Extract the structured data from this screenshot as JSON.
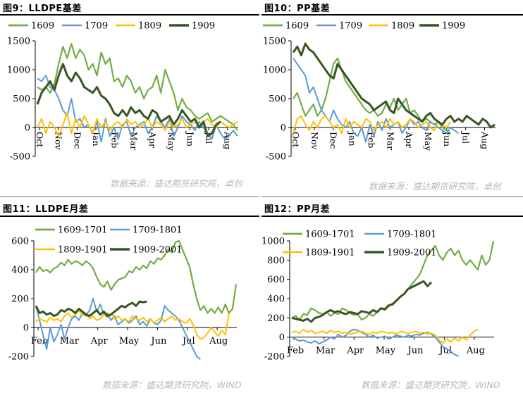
{
  "charts": [
    {
      "caption": "图9：LLDPE基差",
      "source": "数据来源：盛达期货研究院，卓创",
      "chart_data": {
        "type": "line",
        "title": "",
        "ylim": [
          -500,
          1500
        ],
        "yticks": [
          "1500",
          "1000",
          "500",
          "0",
          "-500"
        ],
        "xticks": [
          "Oct",
          "Nov",
          "Dec",
          "Jan",
          "Feb",
          "Mar",
          "Apr",
          "May",
          "Jun",
          "Jul",
          "Aug"
        ],
        "rotated_xticks": true,
        "legend": "top",
        "series": [
          {
            "name": "1609",
            "color": "#70ad47",
            "width": 2.2,
            "values": [
              700,
              650,
              700,
              600,
              750,
              1100,
              1400,
              1200,
              1450,
              1200,
              1350,
              1250,
              1000,
              1100,
              900,
              1300,
              1100,
              1200,
              800,
              850,
              700,
              900,
              800,
              600,
              700,
              500,
              650,
              700,
              900,
              600,
              1000,
              800,
              600,
              300,
              500,
              350,
              300,
              200,
              150,
              200,
              250,
              100,
              150,
              200,
              150,
              100,
              50,
              -50
            ]
          },
          {
            "name": "1709",
            "color": "#5b9bd5",
            "width": 2,
            "values": [
              850,
              800,
              900,
              700,
              650,
              500,
              300,
              200,
              500,
              100,
              150,
              0,
              50,
              -100,
              100,
              -250,
              150,
              -150,
              0,
              -200,
              50,
              100,
              -150,
              0,
              50,
              100,
              -100,
              0,
              200,
              100,
              0,
              150,
              -150,
              0,
              200,
              100,
              50,
              -50,
              100,
              0,
              -100,
              -200,
              50,
              -100,
              -200,
              -150,
              -50,
              -150
            ]
          },
          {
            "name": "1809",
            "color": "#ffc000",
            "width": 2,
            "values": [
              0,
              150,
              -100,
              100,
              0,
              -150,
              50,
              250,
              -100,
              150,
              0,
              200,
              50,
              -100,
              150,
              0,
              100,
              -50,
              50,
              100,
              0,
              150,
              50,
              100,
              0,
              50,
              150,
              0,
              100,
              50,
              -50,
              100,
              0,
              50,
              150,
              0,
              50,
              100,
              0,
              100,
              150,
              50,
              0,
              100,
              50,
              0,
              50,
              100
            ]
          },
          {
            "name": "1909",
            "color": "#375623",
            "width": 3,
            "values": [
              400,
              600,
              700,
              800,
              650,
              900,
              1100,
              900,
              800,
              950,
              850,
              700,
              650,
              600,
              700,
              550,
              500,
              400,
              250,
              200,
              300,
              200,
              350,
              250,
              300,
              200,
              150,
              300,
              250,
              100,
              150,
              200,
              50,
              150,
              300,
              200,
              100,
              150,
              0,
              100,
              -150,
              -100,
              50,
              100
            ]
          }
        ]
      }
    },
    {
      "caption": "图10：PP基差",
      "source": "数据来源：盛达期货研究院，卓创",
      "chart_data": {
        "type": "line",
        "title": "",
        "ylim": [
          -500,
          1500
        ],
        "yticks": [
          "1500",
          "1000",
          "500",
          "0",
          "-500"
        ],
        "xticks": [
          "Oct",
          "Nov",
          "Dec",
          "Jan",
          "Feb",
          "Mar",
          "Apr",
          "May",
          "Jun",
          "Jul",
          "Aug"
        ],
        "rotated_xticks": true,
        "legend": "top",
        "series": [
          {
            "name": "1609",
            "color": "#70ad47",
            "width": 2.2,
            "values": [
              500,
              600,
              400,
              200,
              300,
              400,
              200,
              300,
              500,
              800,
              1100,
              1200,
              1000,
              800,
              700,
              600,
              500,
              400,
              300,
              250,
              300,
              200,
              250,
              400,
              350,
              500,
              300,
              400,
              500,
              250,
              300,
              200,
              100,
              150,
              100,
              50,
              100,
              0,
              -50,
              -100
            ]
          },
          {
            "name": "1709",
            "color": "#5b9bd5",
            "width": 2,
            "values": [
              1200,
              1100,
              1000,
              900,
              600,
              700,
              500,
              300,
              200,
              100,
              300,
              150,
              50,
              0,
              100,
              -100,
              -150,
              0,
              -250,
              50,
              -150,
              100,
              -50,
              150,
              0,
              50,
              100,
              -100,
              0,
              150,
              50,
              100,
              0,
              -50,
              100,
              50,
              0,
              -50,
              -100,
              0,
              -50,
              -100
            ]
          },
          {
            "name": "1809",
            "color": "#ffc000",
            "width": 2,
            "values": [
              -100,
              150,
              200,
              50,
              -50,
              100,
              0,
              150,
              200,
              100,
              0,
              50,
              -100,
              150,
              0,
              100,
              50,
              0,
              150,
              100,
              -50,
              50,
              100,
              0,
              150,
              50,
              100,
              0,
              50,
              150,
              100,
              0,
              50,
              100,
              0,
              -50,
              100,
              50,
              0,
              100
            ]
          },
          {
            "name": "1909",
            "color": "#375623",
            "width": 3,
            "values": [
              1300,
              1400,
              1250,
              1450,
              1350,
              1300,
              1200,
              1100,
              1000,
              900,
              850,
              1100,
              1000,
              900,
              800,
              700,
              600,
              500,
              450,
              400,
              300,
              350,
              400,
              450,
              300,
              250,
              500,
              400,
              300,
              250,
              200,
              150,
              100,
              200,
              250,
              150,
              100,
              50,
              150,
              200,
              100,
              150,
              100,
              200,
              150,
              100,
              50,
              150,
              100,
              0,
              50
            ]
          }
        ]
      }
    },
    {
      "caption": "图11：LLDPE月差",
      "source": "数据来源：盛达期货研究院，WIND",
      "chart_data": {
        "type": "line",
        "title": "",
        "ylim": [
          -200,
          600
        ],
        "yticks": [
          "600",
          "400",
          "200",
          "0",
          "-200"
        ],
        "xticks": [
          "Feb",
          "Mar",
          "Apr",
          "May",
          "Jun",
          "Jul",
          "Aug"
        ],
        "rotated_xticks": false,
        "legend": "top",
        "series": [
          {
            "name": "1609-1701",
            "color": "#70ad47",
            "width": 2.2,
            "values": [
              380,
              420,
              390,
              400,
              380,
              410,
              420,
              450,
              430,
              470,
              440,
              460,
              450,
              430,
              460,
              440,
              410,
              350,
              300,
              280,
              320,
              260,
              300,
              330,
              340,
              350,
              390,
              380,
              420,
              400,
              430,
              410,
              460,
              440,
              480,
              470,
              500,
              540,
              520,
              590,
              600,
              540,
              480,
              420,
              300,
              200,
              120,
              150,
              100,
              130,
              100,
              140,
              100,
              160,
              100,
              130,
              300
            ]
          },
          {
            "name": "1709-1801",
            "color": "#5b9bd5",
            "width": 2,
            "values": [
              150,
              50,
              -50,
              -150,
              0,
              -100,
              -50,
              20,
              -80,
              0,
              60,
              80,
              50,
              100,
              80,
              120,
              200,
              110,
              160,
              90,
              100,
              50,
              80,
              20,
              40,
              60,
              30,
              50,
              80,
              20,
              40,
              10,
              60,
              30,
              20,
              50,
              150,
              120,
              100,
              80,
              50,
              0,
              -50,
              -100,
              -150,
              -200,
              -220
            ]
          },
          {
            "name": "1809-1901",
            "color": "#ffc000",
            "width": 2,
            "values": [
              40,
              60,
              50,
              40,
              70,
              50,
              60,
              40,
              80,
              100,
              70,
              90,
              120,
              80,
              100,
              60,
              80,
              50,
              60,
              90,
              70,
              100,
              60,
              80,
              50,
              60,
              40,
              80,
              60,
              50,
              70,
              40,
              60,
              30,
              50,
              70,
              40,
              60,
              80,
              50,
              60,
              40,
              30,
              60,
              20,
              -50,
              -80,
              -70,
              -40,
              0,
              -30,
              -60,
              -20,
              -50,
              100
            ]
          },
          {
            "name": "1909-2001",
            "color": "#375623",
            "width": 3,
            "values": [
              150,
              100,
              110,
              90,
              100,
              80,
              90,
              120,
              110,
              130,
              120,
              100,
              130,
              110,
              90,
              80,
              100,
              120,
              90,
              110,
              80,
              90,
              110,
              130,
              150,
              140,
              160,
              170,
              150,
              180,
              175,
              180
            ]
          }
        ]
      }
    },
    {
      "caption": "图12：PP月差",
      "source": "数据来源：盛达期货研究院，WIND",
      "chart_data": {
        "type": "line",
        "title": "",
        "ylim": [
          -200,
          1000
        ],
        "yticks": [
          "1000",
          "800",
          "600",
          "400",
          "200",
          "0",
          "-200"
        ],
        "xticks": [
          "Feb",
          "Mar",
          "Apr",
          "May",
          "Jun",
          "Jul",
          "Aug"
        ],
        "rotated_xticks": false,
        "legend": "top",
        "series": [
          {
            "name": "1609-1701",
            "color": "#70ad47",
            "width": 2.2,
            "values": [
              200,
              220,
              180,
              240,
              230,
              300,
              280,
              250,
              240,
              260,
              220,
              250,
              240,
              300,
              280,
              250,
              230,
              240,
              180,
              200,
              240,
              220,
              260,
              300,
              280,
              320,
              350,
              380,
              420,
              450,
              500,
              550,
              600,
              650,
              750,
              850,
              900,
              950,
              850,
              800,
              880,
              920,
              850,
              900,
              800,
              750,
              800,
              750,
              700,
              850,
              750,
              800,
              1000
            ]
          },
          {
            "name": "1709-1801",
            "color": "#5b9bd5",
            "width": 2,
            "values": [
              0,
              -20,
              -40,
              -30,
              -50,
              -60,
              -40,
              -70,
              -50,
              -30,
              0,
              -20,
              30,
              0,
              20,
              60,
              80,
              70,
              50,
              30,
              0,
              20,
              -10,
              0,
              10,
              -20,
              0,
              20,
              10,
              0,
              20,
              10,
              30,
              20,
              40,
              50,
              30,
              0,
              -50,
              -100,
              -120,
              -150,
              -180,
              -200
            ]
          },
          {
            "name": "1809-1901",
            "color": "#ffc000",
            "width": 2,
            "values": [
              50,
              60,
              40,
              80,
              50,
              70,
              40,
              50,
              60,
              40,
              70,
              50,
              60,
              40,
              50,
              30,
              40,
              50,
              60,
              40,
              30,
              50,
              40,
              60,
              50,
              40,
              50,
              30,
              60,
              50,
              40,
              50,
              60,
              40,
              50,
              30,
              40,
              20,
              -30,
              -60,
              -20,
              -50,
              -10,
              -40,
              0,
              -30,
              20,
              60,
              80
            ]
          },
          {
            "name": "1909-2001",
            "color": "#375623",
            "width": 3,
            "values": [
              200,
              190,
              180,
              170,
              190,
              160,
              200,
              210,
              230,
              260,
              280,
              260,
              270,
              250,
              240,
              260,
              250,
              240,
              270,
              260,
              250,
              280,
              260,
              300,
              290,
              330,
              340,
              380,
              420,
              450,
              500,
              520,
              540,
              560,
              580,
              530,
              570
            ]
          }
        ]
      }
    }
  ]
}
